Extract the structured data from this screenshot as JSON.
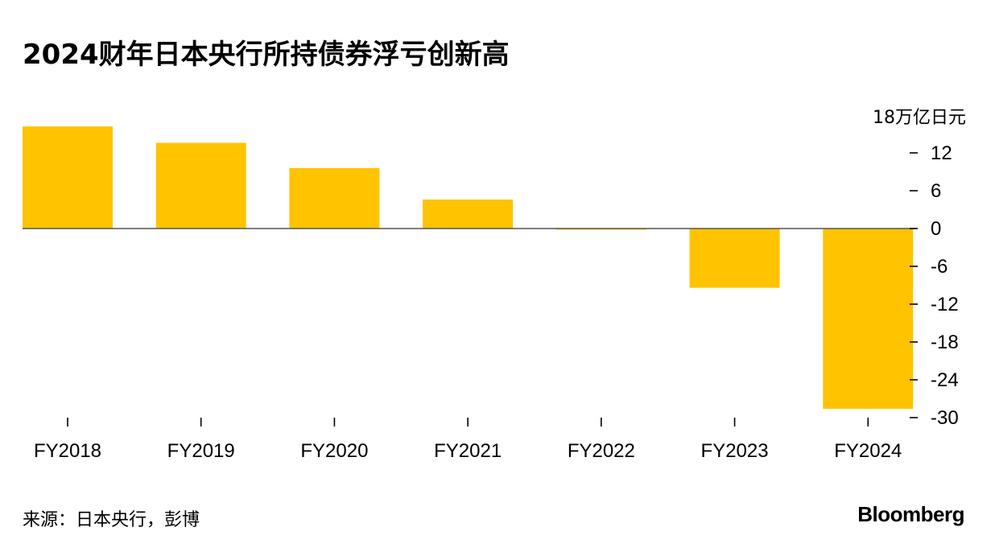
{
  "title": "2024财年日本央行所持债券浮亏创新高",
  "source": "来源：日本央行，彭博",
  "brand": "Bloomberg",
  "chart_data": {
    "type": "bar",
    "unit_label": "18万亿日元",
    "categories": [
      "FY2018",
      "FY2019",
      "FY2020",
      "FY2021",
      "FY2022",
      "FY2023",
      "FY2024"
    ],
    "values": [
      16.2,
      13.6,
      9.6,
      4.6,
      -0.1,
      -9.4,
      -28.6
    ],
    "ylim": [
      -30,
      18
    ],
    "y_ticks": [
      12,
      6,
      0,
      -6,
      -12,
      -18,
      -24,
      -30
    ],
    "y_tick_labels": [
      "12",
      "6",
      "0",
      "-6",
      "-12",
      "-18",
      "-24",
      "-30"
    ],
    "bar_color": "#FFC300",
    "zero_line_color": "#555555",
    "axis_position": "right",
    "grid": false
  }
}
